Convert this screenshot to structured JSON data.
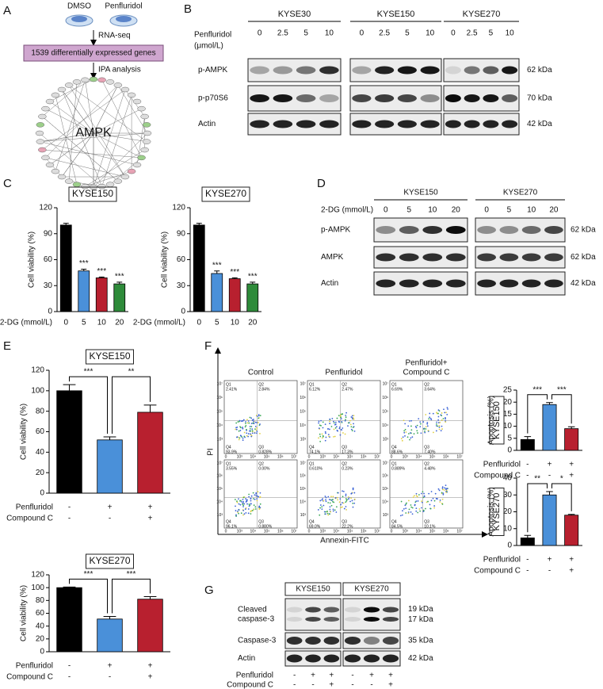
{
  "letters": [
    "A",
    "B",
    "C",
    "D",
    "E",
    "F",
    "G"
  ],
  "panels": {
    "A": {
      "treatments": [
        "DMSO",
        "Penfluridol"
      ],
      "step1": "RNA-seq",
      "box": "1539 differentially expressed genes",
      "step2": "IPA analysis",
      "hub": "AMPK"
    },
    "B": {
      "dose_label": [
        "Penfluridol",
        "(μmol/L)"
      ],
      "lines": [
        "KYSE30",
        "KYSE150",
        "KYSE270"
      ],
      "doses": [
        "0",
        "2.5",
        "5",
        "10"
      ],
      "rows": [
        "p-AMPK",
        "p-p70S6",
        "Actin"
      ],
      "sizes": [
        "62 kDa",
        "70 kDa",
        "42 kDa"
      ]
    },
    "D": {
      "dose_label": "2-DG (mmol/L)",
      "lines": [
        "KYSE150",
        "KYSE270"
      ],
      "doses": [
        "0",
        "5",
        "10",
        "20"
      ],
      "rows": [
        "p-AMPK",
        "AMPK",
        "Actin"
      ],
      "sizes": [
        "62 kDa",
        "62 kDa",
        "42 kDa"
      ]
    },
    "F": {
      "groups": [
        [
          "Control"
        ],
        [
          "Penfluridol"
        ],
        [
          "Penfluridol+",
          "Compound C"
        ]
      ],
      "xlabel": "Annexin-FITC",
      "ylabel": "PI",
      "ticks": [
        "0",
        "10³",
        "10⁴",
        "10⁵",
        "10⁶",
        "10⁷"
      ],
      "quadrant_names": [
        "Q1",
        "Q2",
        "Q4",
        "Q3"
      ],
      "quadrants": [
        [
          [
            "2.41%",
            "2.84%",
            "93.9%",
            "0.828%"
          ],
          [
            "6.12%",
            "2.47%",
            "74.1%",
            "17.3%"
          ],
          [
            "6.69%",
            "3.64%",
            "88.6%",
            "7.40%"
          ]
        ],
        [
          [
            "3.55%",
            "0.00%",
            "96.1%",
            "0.880%"
          ],
          [
            "0.610%",
            "0.23%",
            "69.0%",
            "22.2%"
          ],
          [
            "0.889%",
            "4.48%",
            "84.5%",
            "10.1%"
          ]
        ]
      ]
    },
    "G": {
      "lines": [
        "KYSE150",
        "KYSE270"
      ],
      "rows": [
        [
          "Cleaved",
          "caspase-3"
        ],
        [
          "Caspase-3"
        ],
        [
          "Actin"
        ]
      ],
      "sizes": [
        [
          "19 kDa",
          "17 kDa"
        ],
        [
          "35 kDa"
        ],
        [
          "42 kDa"
        ]
      ],
      "conditions": [
        {
          "label": "Penfluridol",
          "signs": [
            "-",
            "+",
            "+",
            "-",
            "+",
            "+"
          ]
        },
        {
          "label": "Compound C",
          "signs": [
            "-",
            "-",
            "+",
            "-",
            "-",
            "+"
          ]
        }
      ]
    }
  },
  "chart_data": [
    {
      "type": "bar",
      "title": "KYSE150",
      "xlabel": "2-DG (mmol/L)",
      "ylabel": "Cell viability (%)",
      "categories": [
        "0",
        "5",
        "10",
        "20"
      ],
      "values": [
        100,
        47,
        39,
        32
      ],
      "errors": [
        2,
        2,
        1,
        2
      ],
      "colors": [
        "#000000",
        "#4a90d9",
        "#b8202f",
        "#2e8b3a"
      ],
      "ylim": [
        0,
        120
      ],
      "yticks": [
        0,
        30,
        60,
        90,
        120
      ],
      "significance": [
        null,
        "***",
        "***",
        "***"
      ]
    },
    {
      "type": "bar",
      "title": "KYSE270",
      "xlabel": "2-DG (mmol/L)",
      "ylabel": "Cell viability (%)",
      "categories": [
        "0",
        "5",
        "10",
        "20"
      ],
      "values": [
        100,
        44,
        38,
        32
      ],
      "errors": [
        2,
        3,
        1,
        2
      ],
      "colors": [
        "#000000",
        "#4a90d9",
        "#b8202f",
        "#2e8b3a"
      ],
      "ylim": [
        0,
        120
      ],
      "yticks": [
        0,
        30,
        60,
        90,
        120
      ],
      "significance": [
        null,
        "***",
        "***",
        "***"
      ]
    },
    {
      "type": "bar",
      "title": "KYSE150",
      "ylabel": "Cell viability (%)",
      "values": [
        100,
        52,
        79
      ],
      "errors": [
        6,
        3,
        7
      ],
      "colors": [
        "#000000",
        "#4a90d9",
        "#b8202f"
      ],
      "ylim": [
        0,
        120
      ],
      "yticks": [
        0,
        20,
        40,
        60,
        80,
        100,
        120
      ],
      "brackets": [
        "***",
        "**"
      ],
      "conditions": [
        {
          "label": "Penfluridol",
          "signs": [
            "-",
            "+",
            "+"
          ]
        },
        {
          "label": "Compound C",
          "signs": [
            "-",
            "-",
            "+"
          ]
        }
      ]
    },
    {
      "type": "bar",
      "title": "KYSE270",
      "ylabel": "Cell viability (%)",
      "values": [
        100,
        51,
        82
      ],
      "errors": [
        1,
        4,
        4
      ],
      "colors": [
        "#000000",
        "#4a90d9",
        "#b8202f"
      ],
      "ylim": [
        0,
        120
      ],
      "yticks": [
        0,
        20,
        40,
        60,
        80,
        100,
        120
      ],
      "brackets": [
        "***",
        "***"
      ],
      "conditions": [
        {
          "label": "Penfluridol",
          "signs": [
            "-",
            "+",
            "+"
          ]
        },
        {
          "label": "Compound C",
          "signs": [
            "-",
            "-",
            "+"
          ]
        }
      ]
    },
    {
      "type": "bar",
      "title": "KYSE150",
      "ylabel": "Apoptosis (%)",
      "values": [
        4.5,
        19,
        9
      ],
      "errors": [
        1.2,
        0.8,
        0.8
      ],
      "colors": [
        "#000000",
        "#4a90d9",
        "#b8202f"
      ],
      "ylim": [
        0,
        25
      ],
      "yticks": [
        0,
        5,
        10,
        15,
        20,
        25
      ],
      "brackets": [
        "***",
        "***"
      ],
      "conditions": [
        {
          "label": "Penfluridol",
          "signs": [
            "-",
            "+",
            "+"
          ]
        },
        {
          "label": "Compound C",
          "signs": [
            "-",
            "-",
            "+"
          ]
        }
      ]
    },
    {
      "type": "bar",
      "title": "KYSE270",
      "ylabel": "Apoptosis (%)",
      "values": [
        4.5,
        30,
        18
      ],
      "errors": [
        1.5,
        2,
        0.5
      ],
      "colors": [
        "#000000",
        "#4a90d9",
        "#b8202f"
      ],
      "ylim": [
        0,
        40
      ],
      "yticks": [
        0,
        10,
        20,
        30,
        40
      ],
      "brackets": [
        "**",
        "*"
      ],
      "conditions": [
        {
          "label": "Penfluridol",
          "signs": [
            "-",
            "+",
            "+"
          ]
        },
        {
          "label": "Compound C",
          "signs": [
            "-",
            "-",
            "+"
          ]
        }
      ]
    }
  ]
}
